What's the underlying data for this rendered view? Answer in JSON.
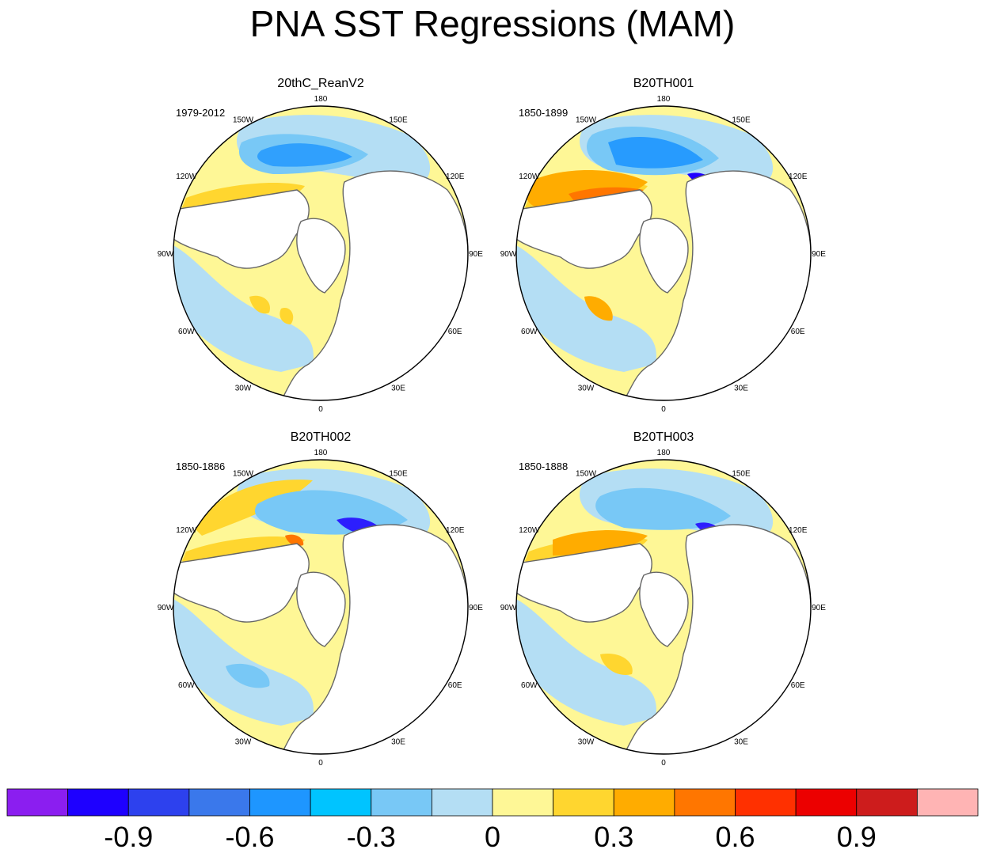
{
  "title": "PNA SST Regressions (MAM)",
  "panels": [
    {
      "name": "20thC_ReanV2",
      "period": "1979-2012"
    },
    {
      "name": "B20TH001",
      "period": "1850-1899"
    },
    {
      "name": "B20TH002",
      "period": "1850-1886"
    },
    {
      "name": "B20TH003",
      "period": "1850-1888"
    }
  ],
  "longitude_labels": [
    "180",
    "150E",
    "120E",
    "90E",
    "60E",
    "30E",
    "0",
    "30W",
    "60W",
    "90W",
    "120W",
    "150W"
  ],
  "colorbar": {
    "colors": [
      "#8b1ef0",
      "#1e00ff",
      "#2d41ee",
      "#3a78eb",
      "#1e96ff",
      "#00c4ff",
      "#78c8f6",
      "#b4def4",
      "#fef796",
      "#ffd62f",
      "#ffac00",
      "#ff7600",
      "#ff3000",
      "#ec0000",
      "#cd1c1c",
      "#ffb4b4"
    ],
    "labels": [
      "-0.9",
      "-0.6",
      "-0.3",
      "0",
      "0.3",
      "0.6",
      "0.9"
    ]
  }
}
